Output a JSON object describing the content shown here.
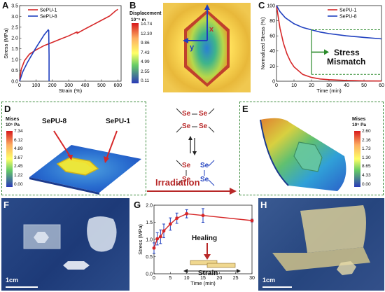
{
  "panels": {
    "A": {
      "label": "A",
      "legend": [
        "SePU-1",
        "SePU-8"
      ],
      "xlabel": "Strain (%)",
      "ylabel": "Stress (MPa)",
      "xticks": [
        "0",
        "100",
        "200",
        "300",
        "400",
        "500",
        "600"
      ],
      "yticks": [
        "0.0",
        "0.5",
        "1.0",
        "1.5",
        "2.0",
        "2.5",
        "3.0",
        "3.5"
      ]
    },
    "B": {
      "label": "B",
      "cbar_title": "Displacement",
      "cbar_unit": "10⁻⁶ m",
      "cbar_values": [
        "14.74",
        "12.30",
        "9.86",
        "7.43",
        "4.99",
        "2.55",
        "0.11"
      ],
      "axis_x": "x",
      "axis_y": "y"
    },
    "C": {
      "label": "C",
      "legend": [
        "SePU-1",
        "SePU-8"
      ],
      "xlabel": "Time (min)",
      "ylabel": "Normalized Stress (%)",
      "xticks": [
        "0",
        "10",
        "20",
        "30",
        "40",
        "50",
        "60"
      ],
      "yticks": [
        "0",
        "20",
        "40",
        "60",
        "80",
        "100"
      ],
      "annotation_line1": "Stress",
      "annotation_line2": "Mismatch"
    },
    "D": {
      "label": "D",
      "tag_left": "SePU-8",
      "tag_right": "SePU-1",
      "cbar_title": "Mises",
      "cbar_unit": "10⁵ Pa",
      "cbar_values": [
        "7.34",
        "6.12",
        "4.89",
        "3.67",
        "2.45",
        "1.22",
        "0.00"
      ]
    },
    "middle": {
      "se": "Se",
      "irradiation": "Irradiation"
    },
    "E": {
      "label": "E",
      "cbar_title": "Mises",
      "cbar_unit": "10⁵ Pa",
      "cbar_values": [
        "2.60",
        "2.16",
        "1.73",
        "1.30",
        "8.65",
        "4.33",
        "0.00"
      ]
    },
    "F": {
      "label": "F",
      "scale": "1cm"
    },
    "G": {
      "label": "G",
      "xlabel": "Time (min)",
      "ylabel": "Stress (MPa)",
      "xticks": [
        "0",
        "5",
        "10",
        "15",
        "20",
        "25",
        "30"
      ],
      "yticks": [
        "0.0",
        "0.5",
        "1.0",
        "1.5",
        "2.0"
      ],
      "healing": "Healing",
      "strain": "Strain"
    },
    "H": {
      "label": "H",
      "scale": "1cm"
    }
  },
  "chart_data": [
    {
      "type": "line",
      "panel": "A",
      "xlabel": "Strain (%)",
      "ylabel": "Stress (MPa)",
      "xlim": [
        0,
        620
      ],
      "ylim": [
        0,
        3.5
      ],
      "series": [
        {
          "name": "SePU-1",
          "color": "#d62728",
          "x": [
            0,
            10,
            30,
            60,
            100,
            150,
            200,
            250,
            300,
            350,
            352,
            400,
            450,
            500,
            550,
            590,
            595,
            600
          ],
          "y": [
            0,
            0.55,
            0.95,
            1.25,
            1.45,
            1.65,
            1.8,
            1.95,
            2.1,
            2.28,
            2.22,
            2.42,
            2.62,
            2.82,
            3.02,
            3.28,
            3.3,
            3.33
          ]
        },
        {
          "name": "SePU-8",
          "color": "#1f3fbf",
          "x": [
            0,
            20,
            50,
            100,
            150,
            175,
            178,
            180,
            180
          ],
          "y": [
            0,
            0.45,
            0.9,
            1.55,
            2.15,
            2.38,
            2.35,
            1.2,
            0.0
          ]
        }
      ]
    },
    {
      "type": "line",
      "panel": "C",
      "xlabel": "Time (min)",
      "ylabel": "Normalized Stress (%)",
      "xlim": [
        0,
        60
      ],
      "ylim": [
        0,
        100
      ],
      "series": [
        {
          "name": "SePU-1",
          "color": "#d62728",
          "x": [
            0,
            1,
            2,
            4,
            6,
            8,
            10,
            15,
            20,
            25,
            30,
            40,
            50,
            60
          ],
          "y": [
            100,
            85,
            70,
            50,
            36,
            26,
            19,
            9,
            5,
            3,
            2,
            1,
            0.5,
            0.3
          ]
        },
        {
          "name": "SePU-8",
          "color": "#1f3fbf",
          "x": [
            0,
            2,
            5,
            10,
            15,
            20,
            25,
            30,
            40,
            50,
            60
          ],
          "y": [
            100,
            92,
            84,
            76,
            71,
            68,
            65,
            63,
            60,
            58,
            56
          ]
        }
      ]
    },
    {
      "type": "line",
      "panel": "G",
      "xlabel": "Time (min)",
      "ylabel": "Stress (MPa)",
      "xlim": [
        0,
        30
      ],
      "ylim": [
        0,
        2.0
      ],
      "series": [
        {
          "name": "",
          "color": "#d62728",
          "x": [
            0,
            1,
            2,
            3,
            5,
            7,
            10,
            15,
            30
          ],
          "y": [
            0.75,
            1.02,
            1.08,
            1.25,
            1.45,
            1.62,
            1.75,
            1.7,
            1.55
          ],
          "err": [
            0.15,
            0.18,
            0.2,
            0.2,
            0.18,
            0.15,
            0.12,
            0.2,
            0.04
          ]
        }
      ]
    }
  ]
}
